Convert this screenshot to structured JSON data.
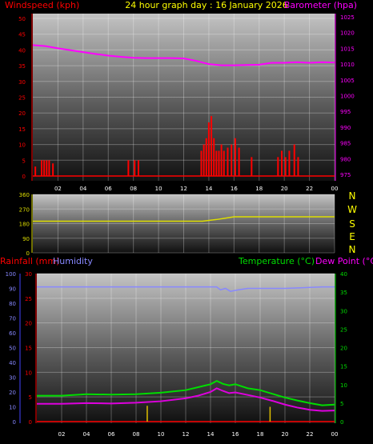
{
  "header": {
    "title": "24 hour graph day : 16 January 2026",
    "left_label": "Windspeed (kph)",
    "right_label": "Barometer (hpa)"
  },
  "middle_panel": {
    "compass_labels": [
      "N",
      "W",
      "S",
      "E",
      "N"
    ]
  },
  "bottom_header": {
    "rainfall_label": "Rainfall (mm)",
    "humidity_label": "Humidity",
    "temperature_label": "Temperature (°C)",
    "dewpoint_label": "Dew Point (°C)"
  },
  "colors": {
    "windspeed": "#ff0000",
    "gust": "#cc0000",
    "barometer": "#ff00ff",
    "direction": "#dede00",
    "humidity": "#8888ff",
    "temperature": "#00dd00",
    "dewpoint": "#dd00dd",
    "rainfall": "#e0c000",
    "title": "#ffff00"
  },
  "chart_data": [
    {
      "type": "line",
      "panel": "wind_barometer",
      "x_ticks": [
        "02",
        "04",
        "06",
        "08",
        "10",
        "12",
        "14",
        "16",
        "18",
        "20",
        "22",
        "00"
      ],
      "xlim": [
        0,
        24
      ],
      "y_left": {
        "label": "Windspeed (kph)",
        "ticks": [
          0,
          5,
          10,
          15,
          20,
          25,
          30,
          35,
          40,
          45,
          50
        ],
        "ylim": [
          0,
          50
        ]
      },
      "y_right": {
        "label": "Barometer (hpa)",
        "ticks": [
          975,
          980,
          985,
          990,
          995,
          1000,
          1005,
          1010,
          1015,
          1020,
          1025
        ],
        "ylim": [
          973,
          1026
        ]
      },
      "series": [
        {
          "name": "Barometer (hpa)",
          "axis": "right",
          "x": [
            0,
            1,
            2,
            3,
            4,
            5,
            6,
            7,
            8,
            9,
            10,
            11,
            12,
            13,
            14,
            15,
            16,
            17,
            18,
            19,
            20,
            21,
            22,
            23,
            24
          ],
          "y": [
            1016,
            1015.7,
            1015,
            1014.4,
            1013.8,
            1013.2,
            1012.7,
            1012.3,
            1012,
            1011.9,
            1011.9,
            1011.9,
            1011.8,
            1011,
            1010,
            1009.6,
            1009.6,
            1009.7,
            1009.8,
            1010.4,
            1010.4,
            1010.6,
            1010.4,
            1010.6,
            1010.5
          ]
        },
        {
          "name": "Windspeed (kph)",
          "axis": "left",
          "style": "bars",
          "x": [
            0.2,
            0.7,
            0.9,
            1.1,
            1.3,
            1.6,
            7.6,
            8.1,
            8.4,
            13.4,
            13.6,
            13.8,
            14.0,
            14.2,
            14.4,
            14.6,
            14.8,
            15.0,
            15.2,
            15.5,
            15.8,
            16.1,
            16.4,
            17.4,
            19.5,
            19.8,
            20.1,
            20.4,
            20.8,
            21.1
          ],
          "y": [
            3,
            5,
            5,
            5,
            5,
            4,
            5,
            5,
            5,
            8,
            10,
            12,
            17,
            19,
            12,
            8,
            8,
            10,
            8,
            9,
            10,
            12,
            9,
            6,
            6,
            8,
            6,
            8,
            10,
            6
          ]
        }
      ]
    },
    {
      "type": "line",
      "panel": "wind_direction",
      "x_ticks": [
        "02",
        "04",
        "06",
        "08",
        "10",
        "12",
        "14",
        "16",
        "18",
        "20",
        "22",
        "00"
      ],
      "xlim": [
        0,
        24
      ],
      "y_ticks": [
        0,
        90,
        180,
        270,
        360
      ],
      "ylim": [
        0,
        360
      ],
      "series": [
        {
          "name": "Wind direction",
          "x": [
            0,
            6,
            12,
            13.5,
            14,
            14.6,
            15.2,
            16,
            17,
            20,
            24
          ],
          "y": [
            195,
            195,
            195,
            195,
            200,
            205,
            212,
            222,
            222,
            222,
            222
          ]
        }
      ]
    },
    {
      "type": "line",
      "panel": "temp_humidity_rain",
      "x_ticks": [
        "02",
        "04",
        "06",
        "08",
        "10",
        "12",
        "14",
        "16",
        "18",
        "20",
        "22",
        "00"
      ],
      "xlim": [
        0,
        24
      ],
      "y_humidity": {
        "label": "Humidity",
        "ticks": [
          0,
          10,
          20,
          30,
          40,
          50,
          60,
          70,
          80,
          90,
          100
        ],
        "ylim": [
          0,
          100
        ]
      },
      "y_rain": {
        "label": "Rainfall (mm)",
        "ticks": [
          0,
          5,
          10,
          15,
          20,
          25,
          30
        ],
        "ylim": [
          0,
          30
        ]
      },
      "y_temp": {
        "label": "Temperature (°C)",
        "ticks": [
          0,
          5,
          10,
          15,
          20,
          25,
          30,
          35,
          40
        ],
        "ylim": [
          0,
          40
        ]
      },
      "series": [
        {
          "name": "Humidity",
          "axis": "humidity",
          "x": [
            0,
            4,
            8,
            12,
            14.5,
            14.8,
            15.2,
            15.6,
            16.2,
            17,
            20,
            23,
            24
          ],
          "y": [
            91,
            91,
            91,
            91,
            91,
            89,
            90,
            88,
            89,
            90,
            90,
            91,
            91
          ]
        },
        {
          "name": "Temperature (°C)",
          "axis": "temp",
          "x": [
            0,
            2,
            4,
            6,
            8,
            10,
            12,
            13,
            14,
            14.5,
            15,
            15.5,
            16,
            17,
            18,
            19,
            20,
            21,
            22,
            23,
            24
          ],
          "y": [
            7,
            7,
            7.4,
            7.3,
            7.4,
            7.8,
            8.5,
            9.3,
            10.1,
            11,
            10.2,
            9.8,
            10.1,
            9,
            8.5,
            7.5,
            6.5,
            5.7,
            5,
            4.4,
            4.6
          ]
        },
        {
          "name": "Dew Point (°C)",
          "axis": "temp",
          "x": [
            0,
            2,
            4,
            6,
            8,
            10,
            12,
            13,
            14,
            14.5,
            15,
            15.5,
            16,
            17,
            18,
            19,
            20,
            21,
            22,
            23,
            24
          ],
          "y": [
            4.8,
            4.8,
            5,
            4.9,
            5.1,
            5.5,
            6.3,
            7,
            8,
            9,
            8.3,
            7.7,
            7.9,
            7.2,
            6.5,
            5.6,
            4.6,
            3.8,
            3.2,
            2.9,
            3
          ]
        },
        {
          "name": "Rainfall (mm)",
          "axis": "rain",
          "style": "bars",
          "x": [
            8.9,
            18.8
          ],
          "y": [
            3.2,
            3.0
          ]
        }
      ]
    }
  ]
}
